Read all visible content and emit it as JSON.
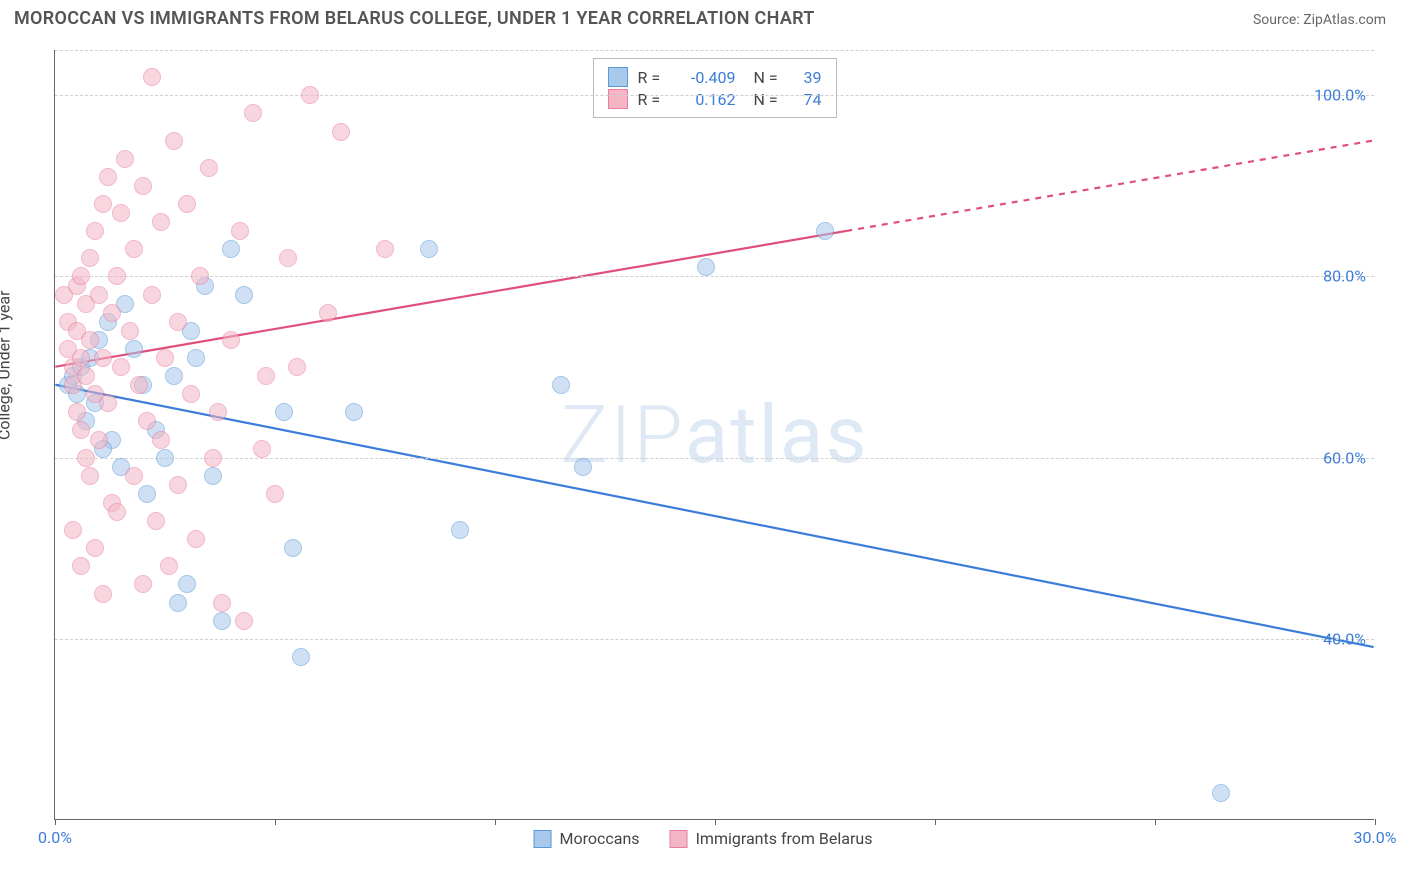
{
  "title": "MOROCCAN VS IMMIGRANTS FROM BELARUS COLLEGE, UNDER 1 YEAR CORRELATION CHART",
  "source": "Source: ZipAtlas.com",
  "ylabel": "College, Under 1 year",
  "watermark": "ZIPatlas",
  "chart": {
    "type": "scatter",
    "xlim": [
      0,
      30
    ],
    "ylim": [
      20,
      105
    ],
    "y_ticks": [
      40,
      60,
      80,
      100
    ],
    "y_tick_labels": [
      "40.0%",
      "60.0%",
      "80.0%",
      "100.0%"
    ],
    "x_ticks": [
      0,
      5,
      10,
      15,
      20,
      25,
      30
    ],
    "x_tick_labels": {
      "0": "0.0%",
      "30": "30.0%"
    },
    "grid_color": "#d0d0d0",
    "background_color": "#ffffff",
    "axis_color": "#666666",
    "point_radius": 9,
    "point_stroke_width": 1,
    "series": [
      {
        "name": "Moroccans",
        "fill": "#a8c8ec",
        "stroke": "#5b9bd5",
        "fill_opacity": 0.55,
        "line_color": "#3b7dd8",
        "line_width": 2.2,
        "trend": {
          "x1": 0,
          "y1": 68,
          "x2": 30,
          "y2": 39,
          "solid_until_x": 30
        },
        "R": "-0.409",
        "N": "39",
        "points": [
          [
            0.3,
            68
          ],
          [
            0.4,
            69
          ],
          [
            0.5,
            67
          ],
          [
            0.6,
            70
          ],
          [
            0.7,
            64
          ],
          [
            0.8,
            71
          ],
          [
            0.9,
            66
          ],
          [
            1.0,
            73
          ],
          [
            1.2,
            75
          ],
          [
            1.3,
            62
          ],
          [
            1.5,
            59
          ],
          [
            1.6,
            77
          ],
          [
            1.8,
            72
          ],
          [
            2.0,
            68
          ],
          [
            2.1,
            56
          ],
          [
            2.3,
            63
          ],
          [
            2.5,
            60
          ],
          [
            2.7,
            69
          ],
          [
            3.0,
            46
          ],
          [
            3.2,
            71
          ],
          [
            3.4,
            79
          ],
          [
            3.6,
            58
          ],
          [
            3.8,
            42
          ],
          [
            4.0,
            83
          ],
          [
            4.3,
            78
          ],
          [
            5.2,
            65
          ],
          [
            5.4,
            50
          ],
          [
            5.6,
            38
          ],
          [
            6.8,
            65
          ],
          [
            8.5,
            83
          ],
          [
            9.2,
            52
          ],
          [
            11.5,
            68
          ],
          [
            12.0,
            59
          ],
          [
            14.8,
            81
          ],
          [
            17.5,
            85
          ],
          [
            26.5,
            23
          ],
          [
            3.1,
            74
          ],
          [
            2.8,
            44
          ],
          [
            1.1,
            61
          ]
        ]
      },
      {
        "name": "Immigrants from Belarus",
        "fill": "#f4b6c5",
        "stroke": "#e87ea0",
        "fill_opacity": 0.55,
        "line_color": "#e04f7a",
        "line_width": 2.2,
        "trend": {
          "x1": 0,
          "y1": 70,
          "x2": 30,
          "y2": 95,
          "solid_until_x": 18
        },
        "R": "0.162",
        "N": "74",
        "points": [
          [
            0.2,
            78
          ],
          [
            0.3,
            75
          ],
          [
            0.3,
            72
          ],
          [
            0.4,
            70
          ],
          [
            0.4,
            68
          ],
          [
            0.5,
            79
          ],
          [
            0.5,
            74
          ],
          [
            0.5,
            65
          ],
          [
            0.6,
            80
          ],
          [
            0.6,
            71
          ],
          [
            0.6,
            63
          ],
          [
            0.7,
            77
          ],
          [
            0.7,
            69
          ],
          [
            0.7,
            60
          ],
          [
            0.8,
            82
          ],
          [
            0.8,
            73
          ],
          [
            0.8,
            58
          ],
          [
            0.9,
            85
          ],
          [
            0.9,
            67
          ],
          [
            1.0,
            78
          ],
          [
            1.0,
            62
          ],
          [
            1.1,
            88
          ],
          [
            1.1,
            71
          ],
          [
            1.2,
            91
          ],
          [
            1.2,
            66
          ],
          [
            1.3,
            76
          ],
          [
            1.3,
            55
          ],
          [
            1.4,
            80
          ],
          [
            1.5,
            87
          ],
          [
            1.5,
            70
          ],
          [
            1.6,
            93
          ],
          [
            1.7,
            74
          ],
          [
            1.8,
            83
          ],
          [
            1.9,
            68
          ],
          [
            2.0,
            90
          ],
          [
            2.1,
            64
          ],
          [
            2.2,
            78
          ],
          [
            2.3,
            53
          ],
          [
            2.4,
            86
          ],
          [
            2.5,
            71
          ],
          [
            2.6,
            48
          ],
          [
            2.7,
            95
          ],
          [
            2.8,
            75
          ],
          [
            3.0,
            88
          ],
          [
            3.1,
            67
          ],
          [
            3.3,
            80
          ],
          [
            3.5,
            92
          ],
          [
            3.6,
            60
          ],
          [
            3.8,
            44
          ],
          [
            4.0,
            73
          ],
          [
            4.2,
            85
          ],
          [
            4.5,
            98
          ],
          [
            4.8,
            69
          ],
          [
            5.0,
            56
          ],
          [
            5.3,
            82
          ],
          [
            5.8,
            100
          ],
          [
            6.2,
            76
          ],
          [
            6.5,
            96
          ],
          [
            7.5,
            83
          ],
          [
            0.4,
            52
          ],
          [
            0.6,
            48
          ],
          [
            0.9,
            50
          ],
          [
            1.1,
            45
          ],
          [
            1.4,
            54
          ],
          [
            1.8,
            58
          ],
          [
            2.0,
            46
          ],
          [
            2.4,
            62
          ],
          [
            2.8,
            57
          ],
          [
            3.2,
            51
          ],
          [
            3.7,
            65
          ],
          [
            4.3,
            42
          ],
          [
            4.7,
            61
          ],
          [
            5.5,
            70
          ],
          [
            2.2,
            102
          ]
        ]
      }
    ]
  },
  "legend_bottom": [
    {
      "label": "Moroccans",
      "fill": "#a8c8ec",
      "stroke": "#5b9bd5"
    },
    {
      "label": "Immigrants from Belarus",
      "fill": "#f4b6c5",
      "stroke": "#e87ea0"
    }
  ]
}
